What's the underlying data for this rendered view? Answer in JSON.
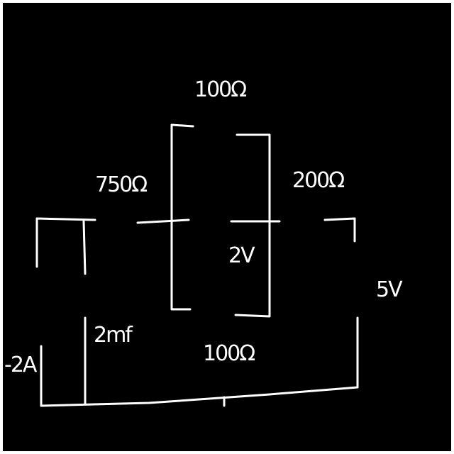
{
  "labels": {
    "r_top": "100Ω",
    "r_left": "750Ω",
    "r_right": "200Ω",
    "v_inner": "2V",
    "v_right": "5V",
    "cap": "2mf",
    "r_bottom": "100Ω",
    "i_left": "-2A"
  },
  "colors": {
    "background": "#000000",
    "ink": "#ffffff"
  }
}
